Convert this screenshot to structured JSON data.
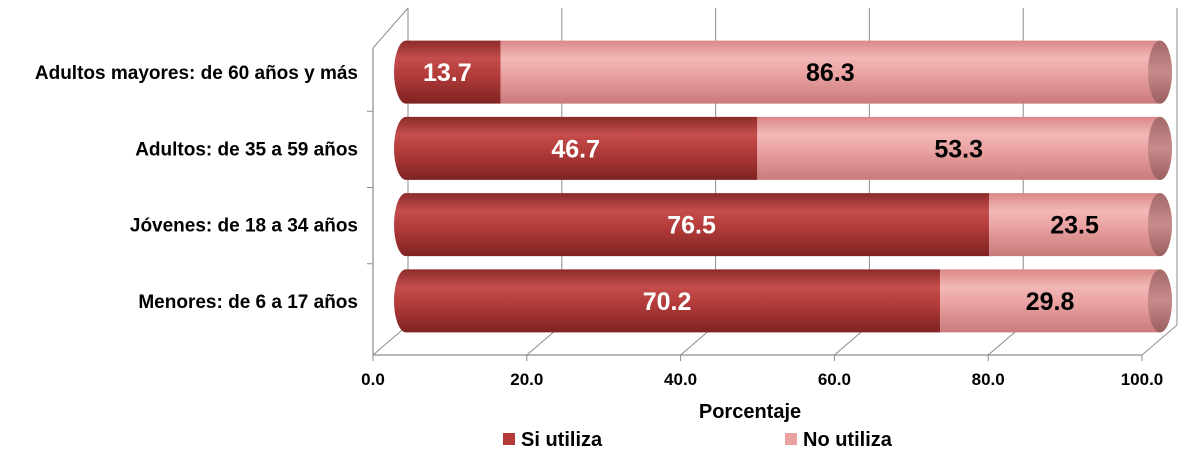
{
  "chart_data": {
    "type": "bar",
    "orientation": "horizontal",
    "stacked": true,
    "categories": [
      "Menores: de 6 a 17 años",
      "Jóvenes: de 18 a 34 años",
      "Adultos: de 35 a 59 años",
      "Adultos mayores: de 60 años y más"
    ],
    "series": [
      {
        "name": "Si utiliza",
        "values": [
          70.2,
          76.5,
          46.7,
          13.7
        ],
        "color": "#b33a39"
      },
      {
        "name": "No utiliza",
        "values": [
          29.8,
          23.5,
          53.3,
          86.3
        ],
        "color": "#e9a1a1"
      }
    ],
    "value_labels": [
      [
        "70.2",
        "76.5",
        "46.7",
        "13.7"
      ],
      [
        "29.8",
        "23.5",
        "53.3",
        "86.3"
      ]
    ],
    "value_label_colors": [
      "#ffffff",
      "#000000"
    ],
    "xlim": [
      0,
      100
    ],
    "xticks": [
      0,
      20,
      40,
      60,
      80,
      100
    ],
    "xtick_labels": [
      "0.0",
      "20.0",
      "40.0",
      "60.0",
      "80.0",
      "100.0"
    ],
    "xlabel": "Porcentaje",
    "ylabel": "",
    "title": "",
    "grid": true,
    "legend_position": "bottom",
    "style": "3d-cylinder"
  }
}
